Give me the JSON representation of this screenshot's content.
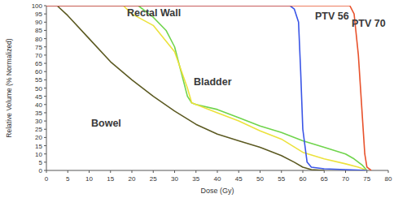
{
  "chart_data": {
    "type": "line",
    "x_label": "Dose (Gy)",
    "y_label": "Relative Volume (% Normalized)",
    "xlim": [
      0,
      80
    ],
    "xticks": [
      0,
      5,
      10,
      15,
      20,
      25,
      30,
      35,
      40,
      45,
      50,
      55,
      60,
      65,
      70,
      75,
      80
    ],
    "ylim": [
      0,
      100
    ],
    "yticks": [
      0,
      5,
      10,
      15,
      20,
      25,
      30,
      35,
      40,
      45,
      50,
      55,
      60,
      65,
      70,
      75,
      80,
      85,
      90,
      95,
      100
    ],
    "grid": false,
    "series": [
      {
        "name": "Bowel",
        "color": "#5c5a22",
        "x": [
          0,
          2.5,
          5,
          10,
          15,
          20,
          25,
          30,
          35,
          40,
          45,
          50,
          55,
          58,
          60,
          62,
          65
        ],
        "values": [
          100,
          100,
          94,
          80,
          66,
          55,
          45,
          36,
          28,
          22,
          18,
          14,
          9,
          5,
          2,
          0.5,
          0
        ]
      },
      {
        "name": "Rectal Wall",
        "color": "#6fd44c",
        "x": [
          0,
          21.5,
          25,
          28,
          30,
          32,
          33,
          34,
          35,
          40,
          45,
          50,
          55,
          60,
          65,
          70,
          72,
          74,
          75
        ],
        "values": [
          100,
          100,
          93,
          85,
          75,
          55,
          45,
          41,
          40,
          37,
          32,
          27,
          23,
          18,
          14,
          10,
          7,
          3,
          0
        ]
      },
      {
        "name": "Bladder",
        "color": "#ece23c",
        "x": [
          0,
          18,
          20,
          25,
          30,
          33,
          34,
          35,
          40,
          45,
          50,
          55,
          60,
          65,
          70,
          73,
          75
        ],
        "values": [
          100,
          100,
          95,
          88,
          72,
          50,
          41,
          40,
          35,
          30,
          24,
          19,
          11,
          7,
          4,
          2,
          0
        ]
      },
      {
        "name": "PTV 56",
        "color": "#3a55e6",
        "x": [
          0,
          57,
          58,
          59,
          59.5,
          60,
          61,
          62,
          65,
          70,
          75
        ],
        "values": [
          100,
          100,
          98,
          90,
          60,
          25,
          5,
          2,
          1,
          0.5,
          0
        ]
      },
      {
        "name": "PTV 70",
        "color": "#e8522c",
        "x": [
          0,
          71,
          72,
          73,
          74,
          74.5,
          75,
          76
        ],
        "values": [
          100,
          100,
          95,
          70,
          30,
          10,
          2,
          0
        ]
      }
    ]
  }
}
